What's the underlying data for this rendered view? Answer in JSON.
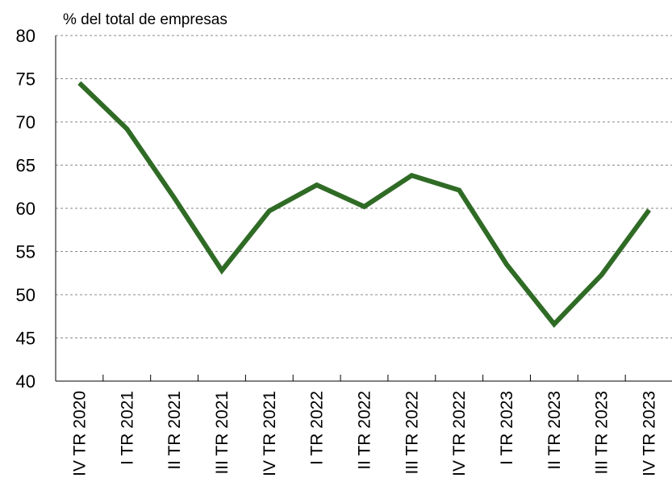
{
  "chart_data": {
    "type": "line",
    "ylabel": "% del total de empresas",
    "ylim": [
      40,
      80
    ],
    "yticks": [
      40,
      45,
      50,
      55,
      60,
      65,
      70,
      75,
      80
    ],
    "grid": true,
    "categories": [
      "IV TR 2020",
      "I TR 2021",
      "II TR 2021",
      "III TR 2021",
      "IV TR 2021",
      "I TR 2022",
      "II TR 2022",
      "III TR 2022",
      "IV TR 2022",
      "I TR 2023",
      "II TR 2023",
      "III TR 2023",
      "IV TR 2023"
    ],
    "series": [
      {
        "values": [
          74.5,
          69.2,
          61.2,
          52.8,
          59.7,
          62.7,
          60.2,
          63.8,
          62.1,
          53.5,
          46.6,
          52.3,
          59.8
        ],
        "color": "#2f6b25"
      }
    ]
  }
}
